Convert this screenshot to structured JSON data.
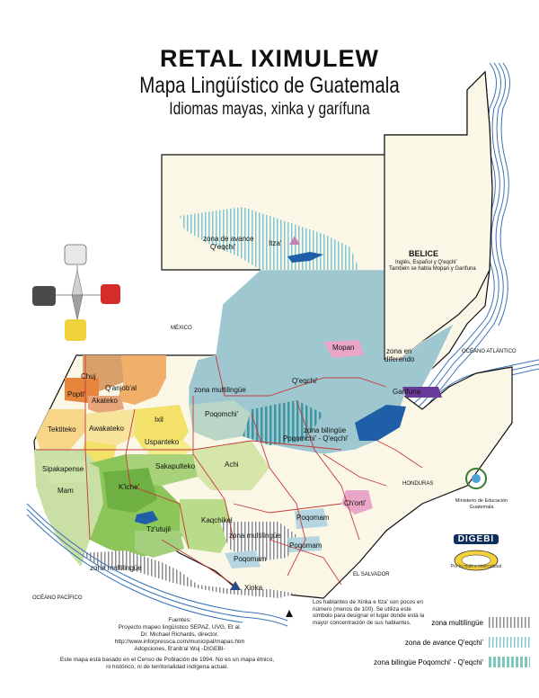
{
  "title": {
    "line1": "RETAL IXIMULEW",
    "line2": "Mapa Lingüístico de Guatemala",
    "line3": "Idiomas mayas, xinka y garífuna"
  },
  "regions": {
    "mexico": "MÉXICO",
    "belice": "BELICE",
    "belice_note_1": "Inglés, Español y Q'eqchi'",
    "belice_note_2": "También se habla Mopan y Garífuna",
    "honduras": "HONDURAS",
    "el_salvador": "EL SALVADOR",
    "oceano_atlantico": "OCÉANO ATLÁNTICO",
    "oceano_pacifico": "OCÉANO PACÍFICO",
    "zona_en_diferendo_1": "zona en",
    "zona_en_diferendo_2": "diferendo"
  },
  "languages": {
    "chuj": "Chuj",
    "popti": "Popti'",
    "qanjobal": "Q'anjob'al",
    "akateko": "Akateko",
    "tektiteko": "Tektiteko",
    "awakateko": "Awakateko",
    "ixil": "Ixil",
    "uspanteko": "Uspanteko",
    "poqomchi": "Poqomchi'",
    "sakapulteko": "Sakapulteko",
    "achi": "Achi",
    "sipakapense": "Sipakapense",
    "mam": "Mam",
    "kiche": "K'iche'",
    "kaqchikel": "Kaqchikel",
    "tzutujil": "Tz'utujil",
    "qeqchi": "Q'eqchi'",
    "mopan": "Mopan",
    "itza": "Itza'",
    "garifuna": "Garífuna",
    "chorti": "Ch'orti'",
    "poqomam_1": "Poqomam",
    "poqomam_2": "Poqomam",
    "poqomam_3": "Poqomam",
    "xinka": "Xinka"
  },
  "zones": {
    "avance_1": "zona de avance",
    "avance_2": "Q'eqchi'",
    "multi_1": "zona multilingüe",
    "multi_2": "zona multilingüe",
    "multi_3": "zona multilingüe",
    "bilingue_1": "zona bilingüe",
    "bilingue_2": "Poqomchi' - Q'eqchi'"
  },
  "small_note": "Los hablantes de Xinka e Itza' son pocos en número (menos de 100). Se utiliza este símbolo para designar el lugar donde está la mayor concentración de sus hablantes.",
  "legend": [
    {
      "label": "zona multilingüe",
      "swatch": "multi"
    },
    {
      "label": "zona de avance Q'eqchi'",
      "swatch": "avance"
    },
    {
      "label": "zona bilingüe Poqomchi' - Q'eqchi'",
      "swatch": "bilingue"
    }
  ],
  "sources": {
    "line1": "Fuentes:",
    "line2": "Proyecto mapeo lingüístico SEPAZ, UVG, Et al.",
    "line3": "Dr. Michael Richards, director.",
    "line4": "http://www.inforpressca.com/municipal/mapas.htm",
    "line5": "Adopciones, B'anb'al Wuj -DIGEBI-"
  },
  "note": {
    "line1": "Este mapa está basado en el Censo de Población de 1994.  No es un mapa étnico,",
    "line2": "ni histórico, ni de territorialidad indígena actual."
  },
  "ministry": {
    "line1": "Ministerio de Educación",
    "line2": "Guatemala"
  },
  "digebi": {
    "name": "DIGEBI",
    "motto": "Por lo multi e intercultural"
  },
  "colors": {
    "qeqchi": "#9ec7cf",
    "mexico_land": "#fbf7e6",
    "kiche": "#8cc65b",
    "mam_south": "#c9dfa3",
    "ixil": "#f3e16a",
    "chuj": "#d9a06a",
    "qanjobal": "#f1b06a",
    "popti": "#e5863c",
    "mopan": "#e9a6c8",
    "lake": "#1f5fa8",
    "border_red": "#c33a3a"
  }
}
